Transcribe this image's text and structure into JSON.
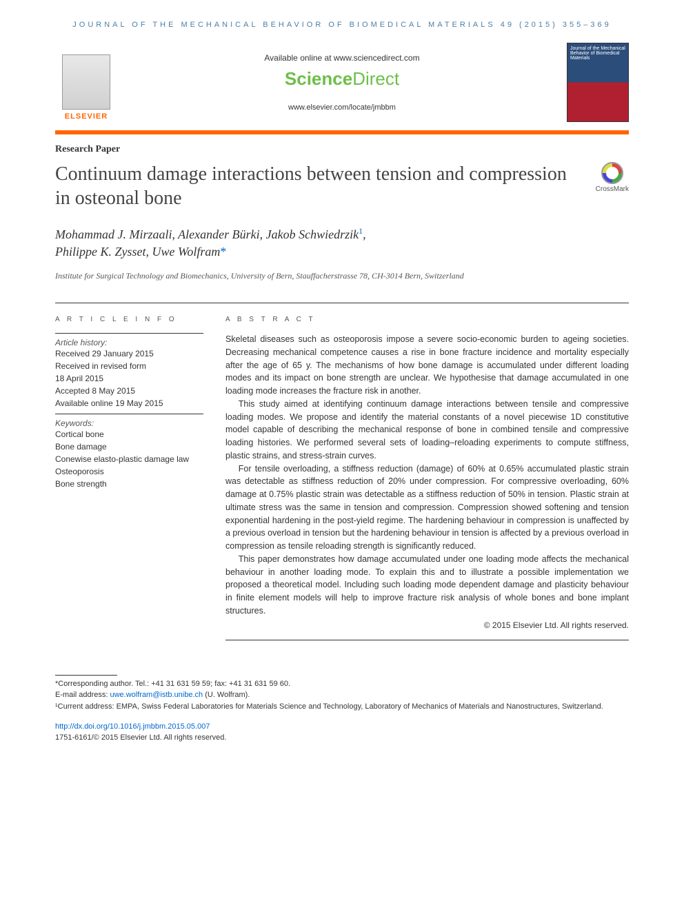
{
  "header": {
    "running_head": "JOURNAL OF THE MECHANICAL BEHAVIOR OF BIOMEDICAL MATERIALS 49 (2015) 355–369"
  },
  "top": {
    "elsevier_label": "ELSEVIER",
    "available_text": "Available online at www.sciencedirect.com",
    "sd_part1": "Science",
    "sd_part2": "Direct",
    "journal_url": "www.elsevier.com/locate/jmbbm",
    "cover_text": "Journal of the Mechanical Behavior of Biomedical Materials"
  },
  "paper": {
    "type": "Research Paper",
    "title": "Continuum damage interactions between tension and compression in osteonal bone",
    "crossmark_label": "CrossMark",
    "authors_line1": "Mohammad J. Mirzaali, Alexander Bürki, Jakob Schwiedrzik",
    "authors_line2": "Philippe K. Zysset, Uwe Wolfram",
    "affiliation": "Institute for Surgical Technology and Biomechanics, University of Bern, Stauffacherstrasse 78, CH-3014 Bern, Switzerland"
  },
  "info": {
    "heading": "A R T I C L E  I N F O",
    "history_label": "Article history:",
    "history": [
      "Received 29 January 2015",
      "Received in revised form",
      "18 April 2015",
      "Accepted 8 May 2015",
      "Available online 19 May 2015"
    ],
    "keywords_label": "Keywords:",
    "keywords": [
      "Cortical bone",
      "Bone damage",
      "Conewise elasto-plastic damage law",
      "Osteoporosis",
      "Bone strength"
    ]
  },
  "abstract": {
    "heading": "A B S T R A C T",
    "p1": "Skeletal diseases such as osteoporosis impose a severe socio-economic burden to ageing societies. Decreasing mechanical competence causes a rise in bone fracture incidence and mortality especially after the age of 65 y. The mechanisms of how bone damage is accumulated under different loading modes and its impact on bone strength are unclear. We hypothesise that damage accumulated in one loading mode increases the fracture risk in another.",
    "p2": "This study aimed at identifying continuum damage interactions between tensile and compressive loading modes. We propose and identify the material constants of a novel piecewise 1D constitutive model capable of describing the mechanical response of bone in combined tensile and compressive loading histories. We performed several sets of loading–reloading experiments to compute stiffness, plastic strains, and stress-strain curves.",
    "p3": "For tensile overloading, a stiffness reduction (damage) of 60% at 0.65% accumulated plastic strain was detectable as stiffness reduction of 20% under compression. For compressive overloading, 60% damage at 0.75% plastic strain was detectable as a stiffness reduction of 50% in tension. Plastic strain at ultimate stress was the same in tension and compression. Compression showed softening and tension exponential hardening in the post-yield regime. The hardening behaviour in compression is unaffected by a previous overload in tension but the hardening behaviour in tension is affected by a previous overload in compression as tensile reloading strength is significantly reduced.",
    "p4": "This paper demonstrates how damage accumulated under one loading mode affects the mechanical behaviour in another loading mode. To explain this and to illustrate a possible implementation we proposed a theoretical model. Including such loading mode dependent damage and plasticity behaviour in finite element models will help to improve fracture risk analysis of whole bones and bone implant structures.",
    "copyright": "© 2015 Elsevier Ltd. All rights reserved."
  },
  "footnotes": {
    "corr": "*Corresponding author. Tel.: +41 31 631 59 59; fax: +41 31 631 59 60.",
    "email_label": "E-mail address: ",
    "email": "uwe.wolfram@istb.unibe.ch",
    "email_suffix": " (U. Wolfram).",
    "note1": "¹Current address: EMPA, Swiss Federal Laboratories for Materials Science and Technology, Laboratory of Mechanics of Materials and Nanostructures, Switzerland."
  },
  "doi": {
    "url": "http://dx.doi.org/10.1016/j.jmbbm.2015.05.007",
    "issn_line": "1751-6161/© 2015 Elsevier Ltd. All rights reserved."
  },
  "colors": {
    "orange": "#ff6600",
    "blue_link": "#0066cc",
    "header_blue": "#4a7fa8",
    "sd_green": "#6dbf47"
  }
}
